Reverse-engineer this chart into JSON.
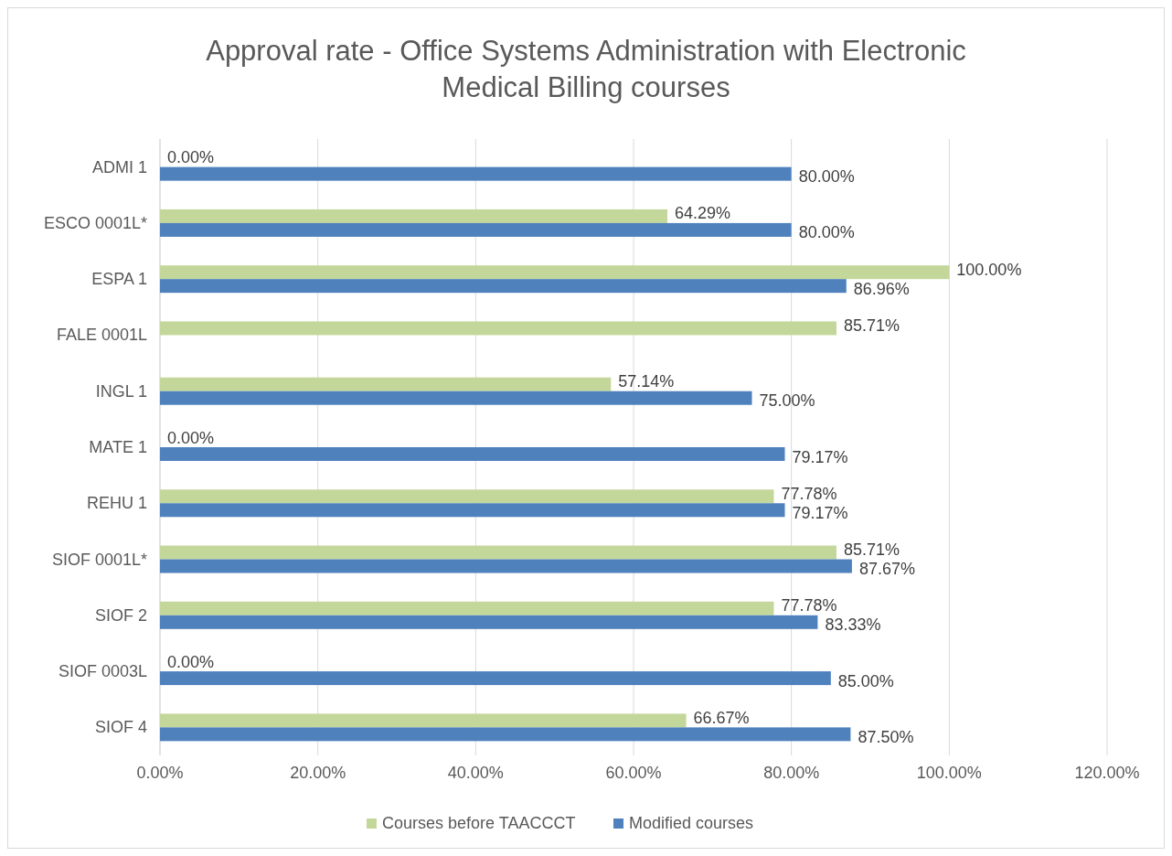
{
  "chart_data": {
    "type": "bar",
    "orientation": "horizontal",
    "title": "Approval rate - Office Systems Administration with Electronic Medical Billing courses",
    "categories": [
      "ADMI 1",
      "ESCO 0001L*",
      "ESPA 1",
      "FALE 0001L",
      "INGL 1",
      "MATE 1",
      "REHU 1",
      "SIOF 0001L*",
      "SIOF 2",
      "SIOF 0003L",
      "SIOF 4"
    ],
    "series": [
      {
        "name": "Courses before TAACCCT",
        "color": "#c4d79b",
        "values": [
          0,
          64.29,
          100,
          85.71,
          57.14,
          0,
          77.78,
          85.71,
          77.78,
          0,
          66.67
        ],
        "value_labels": [
          "0.00%",
          "64.29%",
          "100.00%",
          "85.71%",
          "57.14%",
          "0.00%",
          "77.78%",
          "85.71%",
          "77.78%",
          "0.00%",
          "66.67%"
        ]
      },
      {
        "name": "Modified courses",
        "color": "#4f81bd",
        "values": [
          80,
          80,
          86.96,
          null,
          75,
          79.17,
          79.17,
          87.67,
          83.33,
          85,
          87.5
        ],
        "value_labels": [
          "80.00%",
          "80.00%",
          "86.96%",
          null,
          "75.00%",
          "79.17%",
          "79.17%",
          "87.67%",
          "83.33%",
          "85.00%",
          "87.50%"
        ]
      }
    ],
    "xlim": [
      0,
      120
    ],
    "xticks": [
      {
        "value": 0,
        "label": "0.00%"
      },
      {
        "value": 20,
        "label": "20.00%"
      },
      {
        "value": 40,
        "label": "40.00%"
      },
      {
        "value": 60,
        "label": "60.00%"
      },
      {
        "value": 80,
        "label": "80.00%"
      },
      {
        "value": 100,
        "label": "100.00%"
      },
      {
        "value": 120,
        "label": "120.00%"
      }
    ],
    "grid": "x",
    "legend": "bottom"
  }
}
